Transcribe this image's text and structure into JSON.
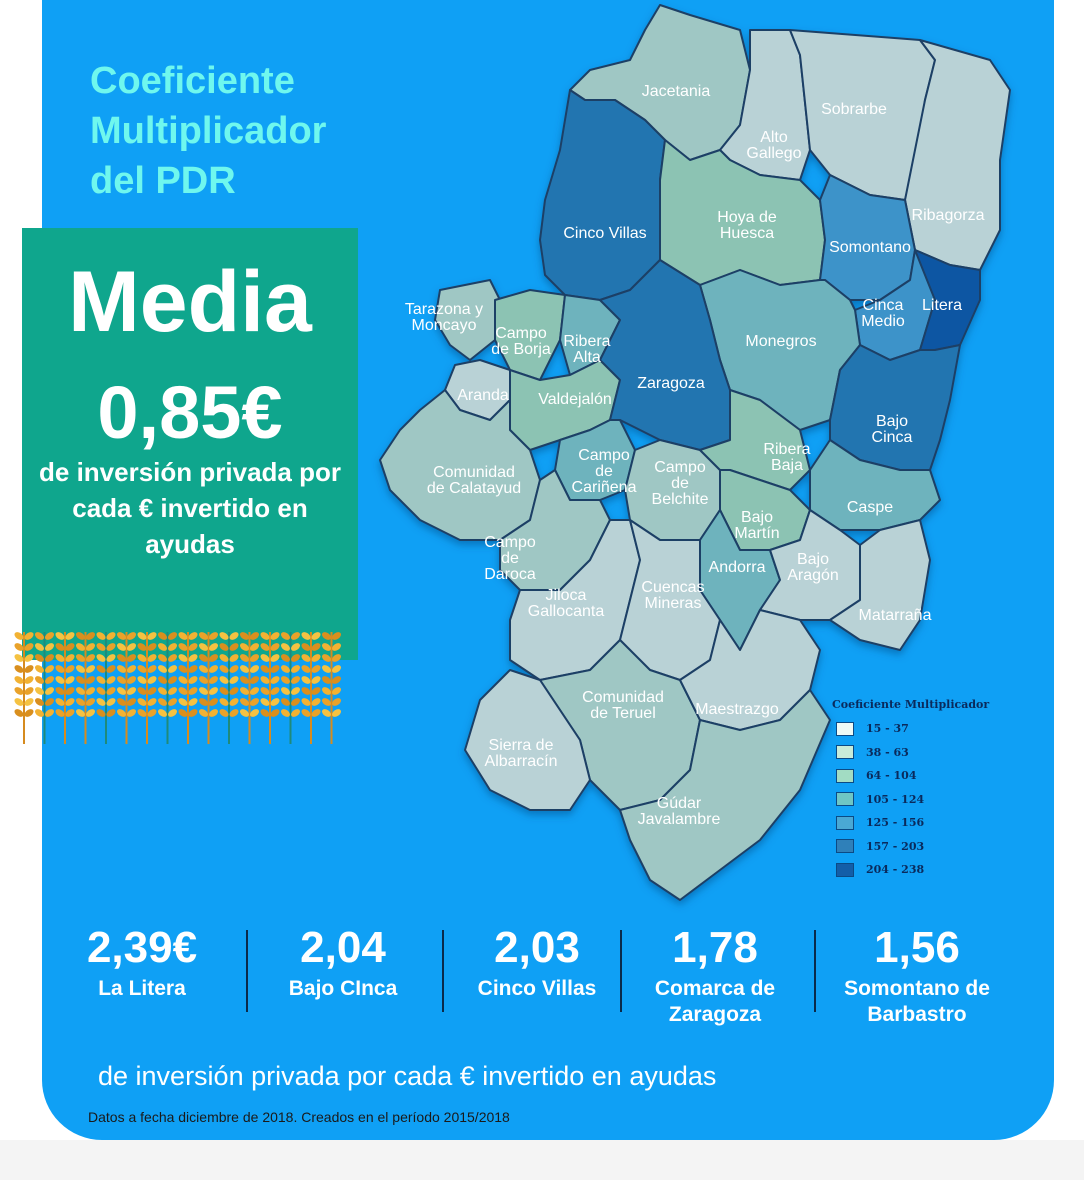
{
  "title_lines": [
    "Coeficiente",
    "Multiplicador",
    "del PDR"
  ],
  "media": {
    "label": "Media",
    "value": "0,85€",
    "description": "de inversión privada por cada € invertido en ayudas"
  },
  "regions": [
    {
      "id": "jacetania",
      "label": "Jacetania",
      "class": 2
    },
    {
      "id": "alto-gallego",
      "label": "Alto\nGallego",
      "class": 1
    },
    {
      "id": "sobrarbe",
      "label": "Sobrarbe",
      "class": 1
    },
    {
      "id": "ribagorza",
      "label": "Ribagorza",
      "class": 1
    },
    {
      "id": "cinco-villas",
      "label": "Cinco Villas",
      "class": 6
    },
    {
      "id": "hoya-de-huesca",
      "label": "Hoya de\nHuesca",
      "class": 3
    },
    {
      "id": "somontano",
      "label": "Somontano",
      "class": 5
    },
    {
      "id": "cinca-medio",
      "label": "Cinca\nMedio",
      "class": 5
    },
    {
      "id": "litera",
      "label": "Litera",
      "class": 7
    },
    {
      "id": "tarazona-y-moncayo",
      "label": "Tarazona y\nMoncayo",
      "class": 2
    },
    {
      "id": "campo-de-borja",
      "label": "Campo\nde Borja",
      "class": 3
    },
    {
      "id": "ribera-alta",
      "label": "Ribera\nAlta",
      "class": 4
    },
    {
      "id": "monegros",
      "label": "Monegros",
      "class": 4
    },
    {
      "id": "aranda",
      "label": "Aranda",
      "class": 1
    },
    {
      "id": "valdejalon",
      "label": "Valdejalón",
      "class": 3
    },
    {
      "id": "zaragoza",
      "label": "Zaragoza",
      "class": 6
    },
    {
      "id": "bajo-cinca",
      "label": "Bajo\nCinca",
      "class": 6
    },
    {
      "id": "comunidad-de-calatayud",
      "label": "Comunidad\nde Calatayud",
      "class": 2
    },
    {
      "id": "campo-de-carinena",
      "label": "Campo\nde\nCariñena",
      "class": 4
    },
    {
      "id": "campo-de-belchite",
      "label": "Campo\nde\nBelchite",
      "class": 2
    },
    {
      "id": "ribera-baja",
      "label": "Ribera\nBaja",
      "class": 3
    },
    {
      "id": "caspe",
      "label": "Caspe",
      "class": 4
    },
    {
      "id": "bajo-martin",
      "label": "Bajo\nMartín",
      "class": 3
    },
    {
      "id": "campo-de-daroca",
      "label": "Campo\nde\nDaroca",
      "class": 2
    },
    {
      "id": "andorra",
      "label": "Andorra",
      "class": 4
    },
    {
      "id": "bajo-aragon",
      "label": "Bajo\nAragón",
      "class": 1
    },
    {
      "id": "jiloca-gallocanta",
      "label": "Jiloca\nGallocanta",
      "class": 1
    },
    {
      "id": "cuencas-mineras",
      "label": "Cuencas\nMineras",
      "class": 1
    },
    {
      "id": "matarrana",
      "label": "Matarraña",
      "class": 1
    },
    {
      "id": "comunidad-de-teruel",
      "label": "Comunidad\nde Teruel",
      "class": 2
    },
    {
      "id": "maestrazgo",
      "label": "Maestrazgo",
      "class": 1
    },
    {
      "id": "sierra-de-albarracin",
      "label": "Sierra de\nAlbarracín",
      "class": 1
    },
    {
      "id": "gudar-javalambre",
      "label": "Gúdar\nJavalambre",
      "class": 2
    }
  ],
  "legend": {
    "title": "Coeficiente Multiplicador",
    "items": [
      {
        "label": "15 - 37",
        "color": "#eefaf6"
      },
      {
        "label": "38 - 63",
        "color": "#c9ecd9"
      },
      {
        "label": "64 - 104",
        "color": "#a2dcc3"
      },
      {
        "label": "105 - 124",
        "color": "#6fc6c4"
      },
      {
        "label": "125 - 156",
        "color": "#4aa8d4"
      },
      {
        "label": "157 - 203",
        "color": "#2f80b9"
      },
      {
        "label": "204 - 238",
        "color": "#135ea8"
      }
    ]
  },
  "map_colors": {
    "1": "#b9d2d6",
    "2": "#9fc7c4",
    "3": "#8cc3b3",
    "4": "#6eb3bd",
    "5": "#3d93c9",
    "6": "#2474b0",
    "7": "#0f56a3"
  },
  "stats": [
    {
      "value": "2,39€",
      "label": "La Litera"
    },
    {
      "value": "2,04",
      "label": "Bajo CInca"
    },
    {
      "value": "2,03",
      "label": "Cinco Villas"
    },
    {
      "value": "1,78",
      "label": "Comarca de\nZaragoza"
    },
    {
      "value": "1,56",
      "label": "Somontano de\nBarbastro"
    }
  ],
  "footer": "de inversión privada por cada € invertido en ayudas",
  "footnote": "Datos a fecha diciembre de 2018. Creados en el período 2015/2018",
  "colors": {
    "background": "#0fa0f5",
    "title": "#6ff7ee",
    "media_box": "#0fa68d"
  }
}
